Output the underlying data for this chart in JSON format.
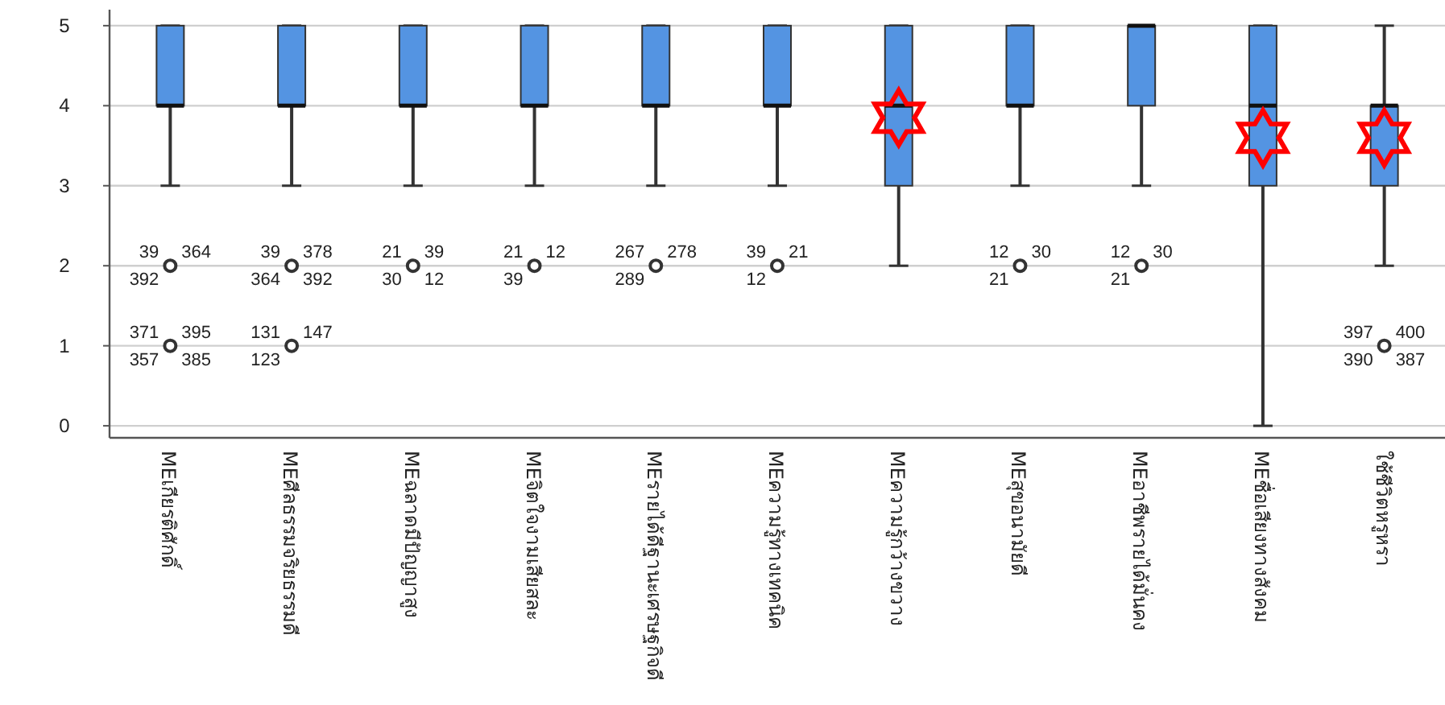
{
  "chart_data": {
    "type": "box",
    "categories": [
      "MEเกียรติศักดิ์",
      "MEศีลธรรมจริยธรรมดี",
      "MEฉลาดมีปัญญาสูง",
      "MEจิตใจงามเสียสละ",
      "MEรายได้ดีฐานะเศรษฐกิจดี",
      "MEความรู้ทางเทคนิค",
      "MEความรู้กว้างขวาง",
      "MEสุขอนามัยดี",
      "MEอาชีพรายได้มั่นคง",
      "MEชื่อเสียงทางสังคม",
      "ใช้ชีวิตหรูหรา"
    ],
    "series": [
      {
        "color": "#5494e2",
        "boxes": [
          {
            "low": 3,
            "q1": 4,
            "median": 4,
            "q3": 5,
            "high": 5
          },
          {
            "low": 3,
            "q1": 4,
            "median": 4,
            "q3": 5,
            "high": 5
          },
          {
            "low": 3,
            "q1": 4,
            "median": 4,
            "q3": 5,
            "high": 5
          },
          {
            "low": 3,
            "q1": 4,
            "median": 4,
            "q3": 5,
            "high": 5
          },
          {
            "low": 3,
            "q1": 4,
            "median": 4,
            "q3": 5,
            "high": 5
          },
          {
            "low": 3,
            "q1": 4,
            "median": 4,
            "q3": 5,
            "high": 5
          },
          {
            "low": 2,
            "q1": 3,
            "median": 4,
            "q3": 5,
            "high": 5,
            "mean": 3.85
          },
          {
            "low": 3,
            "q1": 4,
            "median": 4,
            "q3": 5,
            "high": 5
          },
          {
            "low": 3,
            "q1": 4,
            "median": 5,
            "q3": 5,
            "high": 5
          },
          {
            "low": 0,
            "q1": 3,
            "median": 4,
            "q3": 5,
            "high": 5,
            "mean": 3.6
          },
          {
            "low": 2,
            "q1": 3,
            "median": 4,
            "q3": 4,
            "high": 5,
            "mean": 3.6
          }
        ]
      },
      {
        "type": "scatter",
        "marker": "circle",
        "color": "#333333",
        "x": [
          "MEเกียรติศักดิ์",
          "MEเกียรติศักดิ์",
          "MEศีลธรรมจริยธรรมดี",
          "MEศีลธรรมจริยธรรมดี",
          "MEฉลาดมีปัญญาสูง",
          "MEจิตใจงามเสียสละ",
          "MEรายได้ดีฐานะเศรษฐกิจดี",
          "MEความรู้ทางเทคนิค",
          "MEสุขอนามัยดี",
          "MEอาชีพรายได้มั่นคง",
          "ใช้ชีวิตหรูหรา"
        ],
        "values": [
          2,
          1,
          2,
          1,
          2,
          2,
          2,
          2,
          2,
          2,
          1
        ]
      }
    ],
    "ylim": [
      -0.15,
      5.2
    ],
    "yticks": [
      0,
      1,
      2,
      3,
      4,
      5
    ],
    "grid": "y",
    "annotations": [
      {
        "text": "39",
        "x": "MEเกียรติศักดิ์",
        "y": 2
      },
      {
        "text": "364",
        "x": "MEเกียรติศักดิ์",
        "y": 2
      },
      {
        "text": "392",
        "x": "MEเกียรติศักดิ์",
        "y": 2
      },
      {
        "text": "371",
        "x": "MEเกียรติศักดิ์",
        "y": 1
      },
      {
        "text": "395",
        "x": "MEเกียรติศักดิ์",
        "y": 1
      },
      {
        "text": "357",
        "x": "MEเกียรติศักดิ์",
        "y": 1
      },
      {
        "text": "385",
        "x": "MEเกียรติศักดิ์",
        "y": 1
      },
      {
        "text": "39",
        "x": "MEศีลธรรมจริยธรรมดี",
        "y": 2
      },
      {
        "text": "378",
        "x": "MEศีลธรรมจริยธรรมดี",
        "y": 2
      },
      {
        "text": "364",
        "x": "MEศีลธรรมจริยธรรมดี",
        "y": 2
      },
      {
        "text": "392",
        "x": "MEศีลธรรมจริยธรรมดี",
        "y": 2
      },
      {
        "text": "131",
        "x": "MEศีลธรรมจริยธรรมดี",
        "y": 1
      },
      {
        "text": "147",
        "x": "MEศีลธรรมจริยธรรมดี",
        "y": 1
      },
      {
        "text": "123",
        "x": "MEศีลธรรมจริยธรรมดี",
        "y": 1
      },
      {
        "text": "21",
        "x": "MEฉลาดมีปัญญาสูง",
        "y": 2
      },
      {
        "text": "39",
        "x": "MEฉลาดมีปัญญาสูง",
        "y": 2
      },
      {
        "text": "30",
        "x": "MEฉลาดมีปัญญาสูง",
        "y": 2
      },
      {
        "text": "12",
        "x": "MEฉลาดมีปัญญาสูง",
        "y": 2
      },
      {
        "text": "21",
        "x": "MEจิตใจงามเสียสละ",
        "y": 2
      },
      {
        "text": "12",
        "x": "MEจิตใจงามเสียสละ",
        "y": 2
      },
      {
        "text": "39",
        "x": "MEจิตใจงามเสียสละ",
        "y": 2
      },
      {
        "text": "267",
        "x": "MEรายได้ดีฐานะเศรษฐกิจดี",
        "y": 2
      },
      {
        "text": "278",
        "x": "MEรายได้ดีฐานะเศรษฐกิจดี",
        "y": 2
      },
      {
        "text": "289",
        "x": "MEรายได้ดีฐานะเศรษฐกิจดี",
        "y": 2
      },
      {
        "text": "39",
        "x": "MEความรู้ทางเทคนิค",
        "y": 2
      },
      {
        "text": "21",
        "x": "MEความรู้ทางเทคนิค",
        "y": 2
      },
      {
        "text": "12",
        "x": "MEความรู้ทางเทคนิค",
        "y": 2
      },
      {
        "text": "12",
        "x": "MEสุขอนามัยดี",
        "y": 2
      },
      {
        "text": "30",
        "x": "MEสุขอนามัยดี",
        "y": 2
      },
      {
        "text": "21",
        "x": "MEสุขอนามัยดี",
        "y": 2
      },
      {
        "text": "12",
        "x": "MEอาชีพรายได้มั่นคง",
        "y": 2
      },
      {
        "text": "30",
        "x": "MEอาชีพรายได้มั่นคง",
        "y": 2
      },
      {
        "text": "21",
        "x": "MEอาชีพรายได้มั่นคง",
        "y": 2
      },
      {
        "text": "397",
        "x": "ใช้ชีวิตหรูหรา",
        "y": 1
      },
      {
        "text": "400",
        "x": "ใช้ชีวิตหรูหรา",
        "y": 1
      },
      {
        "text": "390",
        "x": "ใช้ชีวิตหรูหรา",
        "y": 1
      },
      {
        "text": "387",
        "x": "ใช้ชีวิตหรูหรา",
        "y": 1
      }
    ]
  }
}
